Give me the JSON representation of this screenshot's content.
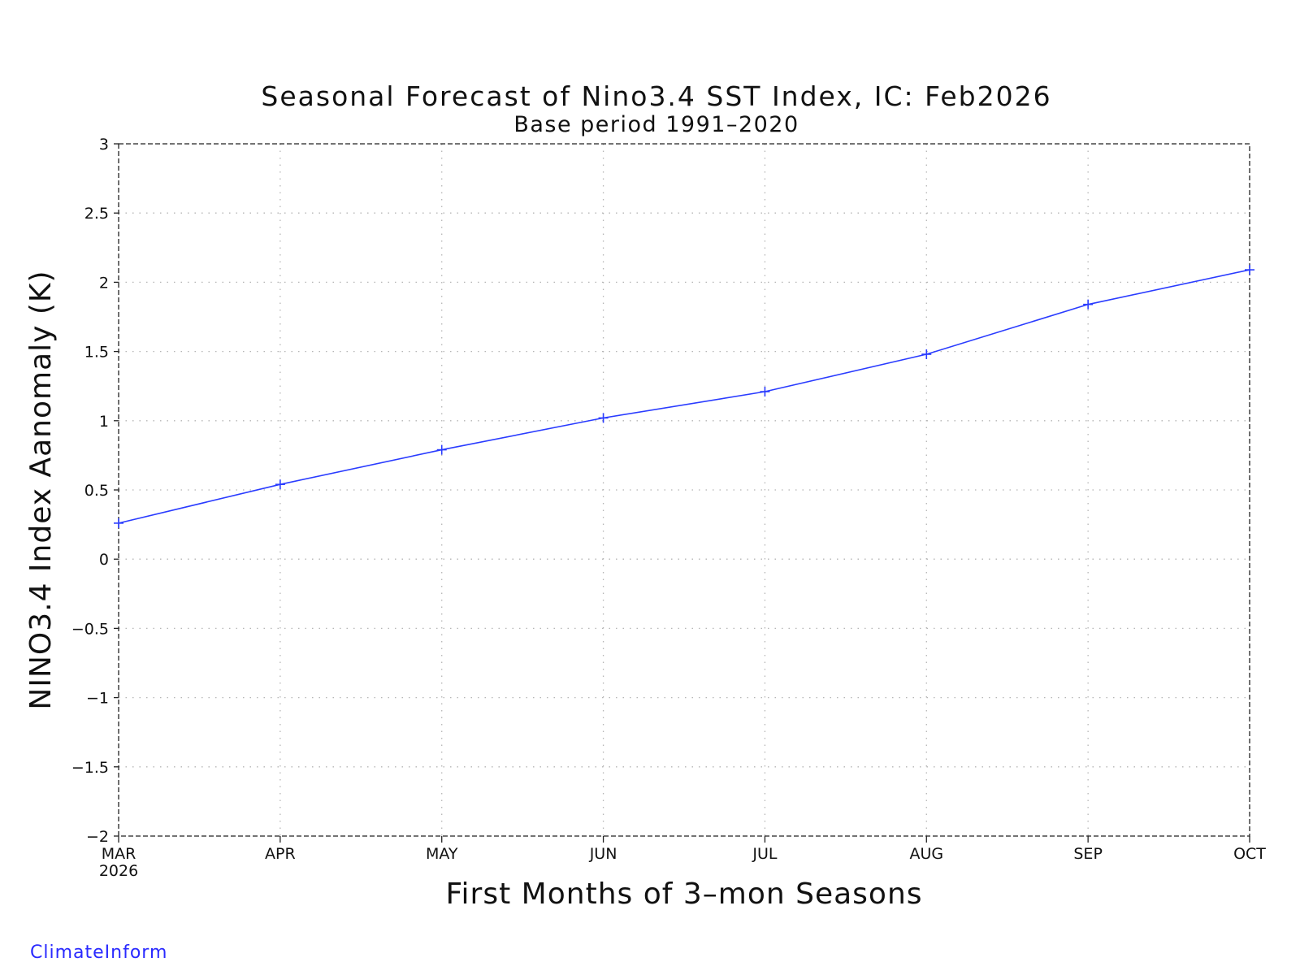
{
  "chart_data": {
    "type": "line",
    "title": "Seasonal Forecast of Nino3.4 SST Index, IC: Feb2026",
    "subtitle": "Base period 1991–2020",
    "xlabel": "First Months of 3–mon Seasons",
    "ylabel": "NINO3.4 Index Aanomaly (K)",
    "categories": [
      "MAR",
      "APR",
      "MAY",
      "JUN",
      "JUL",
      "AUG",
      "SEP",
      "OCT"
    ],
    "first_year_label": "2026",
    "ylim": [
      -2,
      3
    ],
    "yticks": [
      -2,
      -1.5,
      -1,
      -0.5,
      0,
      0.5,
      1,
      1.5,
      2,
      2.5,
      3
    ],
    "ytick_labels": [
      "−2",
      "−1.5",
      "−1",
      "−0.5",
      "0",
      "0.5",
      "1",
      "1.5",
      "2",
      "2.5",
      "3"
    ],
    "grid": true,
    "series": [
      {
        "values": [
          0.26,
          0.54,
          0.79,
          1.02,
          1.21,
          1.48,
          1.84,
          2.09
        ],
        "color": "#2a3cff",
        "marker": "plus"
      }
    ]
  },
  "footer": {
    "credit": "ClimateInform"
  }
}
